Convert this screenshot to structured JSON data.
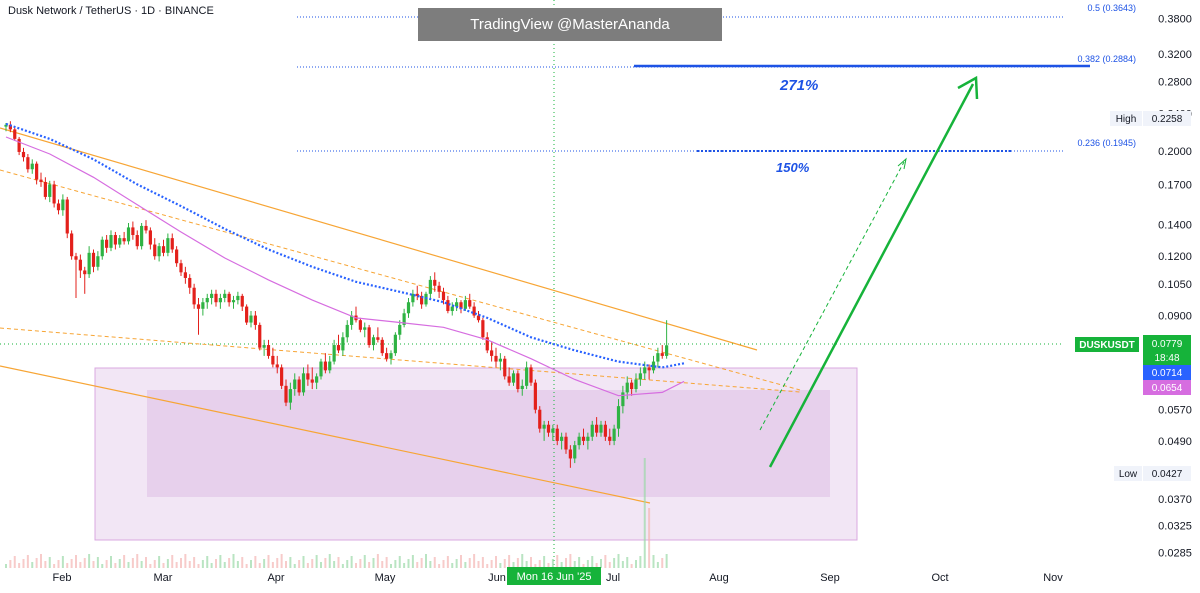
{
  "header": {
    "title": "Dusk Network / TetherUS · 1D · BINANCE",
    "watermark": "TradingView @MasterAnanda"
  },
  "colors": {
    "up": "#26a69a",
    "up_candle": "#2fb344",
    "down": "#e3201b",
    "ema_blue": "#2962ff",
    "ma_pink": "#d66de0",
    "channel": "#f7a535",
    "zone": "#e9d5ee",
    "arrow": "#16b33a",
    "fib": "#1e53e5",
    "price_tag": "#16b33a",
    "crosshair": "#16b33a"
  },
  "chart_data": {
    "type": "candlestick",
    "symbol": "DUSKUSDT",
    "interval": "1D",
    "exchange": "BINANCE",
    "x_ticks": [
      "Feb",
      "Mar",
      "Apr",
      "May",
      "Jun",
      "Jul",
      "Aug",
      "Sep",
      "Oct",
      "Nov"
    ],
    "y_ticks": [
      "0.3800",
      "0.3200",
      "0.2800",
      "0.2400",
      "0.2000",
      "0.1700",
      "0.1400",
      "0.1200",
      "0.1050",
      "0.0900",
      "0.0570",
      "0.0490",
      "0.0370",
      "0.0325",
      "0.0285"
    ],
    "y_scale": "log",
    "ylim": [
      0.0275,
      0.4
    ],
    "price_labels": {
      "last_symbol": "DUSKUSDT",
      "last_price": "0.0779",
      "countdown": "18:48",
      "ema_value": "0.0714",
      "ma_value": "0.0654",
      "high_label": "High",
      "high_value": "0.2258",
      "low_label": "Low",
      "low_value": "0.0427"
    },
    "crosshair_date": "Mon 16 Jun '25",
    "fib_levels": [
      {
        "label": "0.5 (0.3643)",
        "price": 0.3643
      },
      {
        "label": "0.382 (0.2884)",
        "price": 0.2884
      },
      {
        "label": "0.236 (0.1945)",
        "price": 0.1945
      }
    ],
    "targets": [
      {
        "label": "271%",
        "price": 0.2884
      },
      {
        "label": "150%",
        "price": 0.1945
      }
    ],
    "candles": [
      [
        0.225,
        0.229,
        0.22,
        0.227
      ],
      [
        0.227,
        0.231,
        0.219,
        0.222
      ],
      [
        0.222,
        0.224,
        0.21,
        0.212
      ],
      [
        0.212,
        0.214,
        0.196,
        0.199
      ],
      [
        0.199,
        0.203,
        0.19,
        0.194
      ],
      [
        0.194,
        0.197,
        0.18,
        0.183
      ],
      [
        0.183,
        0.192,
        0.179,
        0.188
      ],
      [
        0.188,
        0.19,
        0.17,
        0.174
      ],
      [
        0.174,
        0.18,
        0.168,
        0.172
      ],
      [
        0.172,
        0.176,
        0.158,
        0.16
      ],
      [
        0.16,
        0.173,
        0.156,
        0.17
      ],
      [
        0.17,
        0.173,
        0.152,
        0.155
      ],
      [
        0.155,
        0.158,
        0.147,
        0.15
      ],
      [
        0.15,
        0.162,
        0.146,
        0.158
      ],
      [
        0.158,
        0.16,
        0.131,
        0.134
      ],
      [
        0.134,
        0.136,
        0.118,
        0.12
      ],
      [
        0.12,
        0.122,
        0.098,
        0.118
      ],
      [
        0.118,
        0.121,
        0.108,
        0.112
      ],
      [
        0.112,
        0.114,
        0.1,
        0.11
      ],
      [
        0.11,
        0.126,
        0.108,
        0.122
      ],
      [
        0.122,
        0.124,
        0.111,
        0.114
      ],
      [
        0.114,
        0.123,
        0.112,
        0.12
      ],
      [
        0.12,
        0.132,
        0.118,
        0.13
      ],
      [
        0.13,
        0.133,
        0.122,
        0.125
      ],
      [
        0.125,
        0.136,
        0.123,
        0.133
      ],
      [
        0.133,
        0.135,
        0.124,
        0.127
      ],
      [
        0.127,
        0.133,
        0.125,
        0.131
      ],
      [
        0.131,
        0.135,
        0.127,
        0.129
      ],
      [
        0.129,
        0.141,
        0.127,
        0.138
      ],
      [
        0.138,
        0.142,
        0.13,
        0.133
      ],
      [
        0.133,
        0.136,
        0.124,
        0.126
      ],
      [
        0.126,
        0.141,
        0.124,
        0.139
      ],
      [
        0.139,
        0.143,
        0.134,
        0.136
      ],
      [
        0.136,
        0.138,
        0.124,
        0.127
      ],
      [
        0.127,
        0.131,
        0.118,
        0.12
      ],
      [
        0.12,
        0.128,
        0.117,
        0.126
      ],
      [
        0.126,
        0.13,
        0.12,
        0.122
      ],
      [
        0.122,
        0.134,
        0.12,
        0.131
      ],
      [
        0.131,
        0.134,
        0.122,
        0.124
      ],
      [
        0.124,
        0.126,
        0.114,
        0.116
      ],
      [
        0.116,
        0.118,
        0.109,
        0.111
      ],
      [
        0.111,
        0.114,
        0.105,
        0.108
      ],
      [
        0.108,
        0.11,
        0.1,
        0.103
      ],
      [
        0.103,
        0.105,
        0.093,
        0.095
      ],
      [
        0.095,
        0.098,
        0.082,
        0.093
      ],
      [
        0.093,
        0.098,
        0.09,
        0.096
      ],
      [
        0.096,
        0.1,
        0.093,
        0.098
      ],
      [
        0.098,
        0.102,
        0.095,
        0.1
      ],
      [
        0.1,
        0.102,
        0.094,
        0.096
      ],
      [
        0.096,
        0.1,
        0.093,
        0.098
      ],
      [
        0.098,
        0.102,
        0.096,
        0.1
      ],
      [
        0.1,
        0.101,
        0.094,
        0.096
      ],
      [
        0.096,
        0.099,
        0.093,
        0.097
      ],
      [
        0.097,
        0.101,
        0.095,
        0.099
      ],
      [
        0.099,
        0.1,
        0.092,
        0.094
      ],
      [
        0.094,
        0.095,
        0.086,
        0.087
      ],
      [
        0.087,
        0.092,
        0.085,
        0.09
      ],
      [
        0.09,
        0.092,
        0.084,
        0.086
      ],
      [
        0.086,
        0.087,
        0.076,
        0.077
      ],
      [
        0.077,
        0.08,
        0.074,
        0.078
      ],
      [
        0.078,
        0.08,
        0.073,
        0.074
      ],
      [
        0.074,
        0.077,
        0.07,
        0.071
      ],
      [
        0.071,
        0.074,
        0.068,
        0.07
      ],
      [
        0.07,
        0.071,
        0.063,
        0.064
      ],
      [
        0.064,
        0.066,
        0.058,
        0.059
      ],
      [
        0.059,
        0.065,
        0.057,
        0.063
      ],
      [
        0.063,
        0.068,
        0.061,
        0.066
      ],
      [
        0.066,
        0.067,
        0.061,
        0.062
      ],
      [
        0.062,
        0.07,
        0.061,
        0.068
      ],
      [
        0.068,
        0.071,
        0.064,
        0.066
      ],
      [
        0.066,
        0.07,
        0.063,
        0.065
      ],
      [
        0.065,
        0.068,
        0.063,
        0.067
      ],
      [
        0.067,
        0.073,
        0.066,
        0.072
      ],
      [
        0.072,
        0.075,
        0.068,
        0.069
      ],
      [
        0.069,
        0.074,
        0.068,
        0.072
      ],
      [
        0.072,
        0.08,
        0.071,
        0.078
      ],
      [
        0.078,
        0.082,
        0.075,
        0.076
      ],
      [
        0.076,
        0.083,
        0.074,
        0.081
      ],
      [
        0.081,
        0.088,
        0.079,
        0.086
      ],
      [
        0.086,
        0.092,
        0.084,
        0.09
      ],
      [
        0.09,
        0.094,
        0.087,
        0.088
      ],
      [
        0.088,
        0.089,
        0.083,
        0.084
      ],
      [
        0.084,
        0.087,
        0.081,
        0.085
      ],
      [
        0.085,
        0.086,
        0.077,
        0.078
      ],
      [
        0.078,
        0.082,
        0.076,
        0.081
      ],
      [
        0.081,
        0.085,
        0.079,
        0.08
      ],
      [
        0.08,
        0.081,
        0.074,
        0.075
      ],
      [
        0.075,
        0.077,
        0.072,
        0.073
      ],
      [
        0.073,
        0.076,
        0.071,
        0.075
      ],
      [
        0.075,
        0.083,
        0.074,
        0.082
      ],
      [
        0.082,
        0.088,
        0.08,
        0.086
      ],
      [
        0.086,
        0.093,
        0.085,
        0.091
      ],
      [
        0.091,
        0.098,
        0.089,
        0.096
      ],
      [
        0.096,
        0.102,
        0.094,
        0.1
      ],
      [
        0.1,
        0.104,
        0.097,
        0.099
      ],
      [
        0.099,
        0.101,
        0.093,
        0.095
      ],
      [
        0.095,
        0.101,
        0.094,
        0.1
      ],
      [
        0.1,
        0.109,
        0.098,
        0.107
      ],
      [
        0.107,
        0.111,
        0.101,
        0.104
      ],
      [
        0.104,
        0.106,
        0.098,
        0.101
      ],
      [
        0.101,
        0.103,
        0.095,
        0.097
      ],
      [
        0.097,
        0.099,
        0.091,
        0.092
      ],
      [
        0.092,
        0.096,
        0.09,
        0.094
      ],
      [
        0.094,
        0.098,
        0.092,
        0.096
      ],
      [
        0.096,
        0.097,
        0.091,
        0.093
      ],
      [
        0.093,
        0.099,
        0.092,
        0.097
      ],
      [
        0.097,
        0.1,
        0.093,
        0.094
      ],
      [
        0.094,
        0.096,
        0.089,
        0.09
      ],
      [
        0.09,
        0.092,
        0.087,
        0.088
      ],
      [
        0.088,
        0.089,
        0.08,
        0.081
      ],
      [
        0.081,
        0.083,
        0.075,
        0.076
      ],
      [
        0.076,
        0.079,
        0.072,
        0.074
      ],
      [
        0.074,
        0.077,
        0.07,
        0.072
      ],
      [
        0.072,
        0.075,
        0.069,
        0.073
      ],
      [
        0.073,
        0.074,
        0.066,
        0.067
      ],
      [
        0.067,
        0.07,
        0.064,
        0.065
      ],
      [
        0.065,
        0.069,
        0.064,
        0.068
      ],
      [
        0.068,
        0.069,
        0.062,
        0.063
      ],
      [
        0.063,
        0.066,
        0.061,
        0.064
      ],
      [
        0.064,
        0.072,
        0.063,
        0.07
      ],
      [
        0.07,
        0.071,
        0.064,
        0.065
      ],
      [
        0.065,
        0.066,
        0.056,
        0.057
      ],
      [
        0.057,
        0.058,
        0.051,
        0.052
      ],
      [
        0.052,
        0.054,
        0.049,
        0.053
      ],
      [
        0.053,
        0.054,
        0.05,
        0.051
      ],
      [
        0.051,
        0.053,
        0.049,
        0.052
      ],
      [
        0.052,
        0.053,
        0.048,
        0.049
      ],
      [
        0.049,
        0.051,
        0.047,
        0.05
      ],
      [
        0.05,
        0.051,
        0.046,
        0.047
      ],
      [
        0.047,
        0.048,
        0.043,
        0.045
      ],
      [
        0.045,
        0.049,
        0.044,
        0.048
      ],
      [
        0.048,
        0.051,
        0.047,
        0.05
      ],
      [
        0.05,
        0.052,
        0.048,
        0.049
      ],
      [
        0.049,
        0.051,
        0.047,
        0.05
      ],
      [
        0.05,
        0.054,
        0.049,
        0.053
      ],
      [
        0.053,
        0.055,
        0.05,
        0.051
      ],
      [
        0.051,
        0.054,
        0.05,
        0.053
      ],
      [
        0.053,
        0.054,
        0.049,
        0.05
      ],
      [
        0.05,
        0.052,
        0.048,
        0.049
      ],
      [
        0.049,
        0.053,
        0.048,
        0.052
      ],
      [
        0.052,
        0.06,
        0.05,
        0.058
      ],
      [
        0.058,
        0.064,
        0.056,
        0.062
      ],
      [
        0.062,
        0.067,
        0.06,
        0.065
      ],
      [
        0.065,
        0.066,
        0.061,
        0.063
      ],
      [
        0.063,
        0.068,
        0.062,
        0.066
      ],
      [
        0.066,
        0.07,
        0.064,
        0.068
      ],
      [
        0.068,
        0.072,
        0.066,
        0.07
      ],
      [
        0.07,
        0.071,
        0.066,
        0.069
      ],
      [
        0.069,
        0.074,
        0.068,
        0.072
      ],
      [
        0.072,
        0.077,
        0.07,
        0.075
      ],
      [
        0.075,
        0.078,
        0.073,
        0.074
      ],
      [
        0.074,
        0.088,
        0.073,
        0.0779
      ]
    ],
    "ema_dates_note": "",
    "ema_blue": [
      [
        0,
        0.228
      ],
      [
        10,
        0.212
      ],
      [
        20,
        0.192
      ],
      [
        30,
        0.17
      ],
      [
        40,
        0.153
      ],
      [
        50,
        0.137
      ],
      [
        60,
        0.124
      ],
      [
        70,
        0.114
      ],
      [
        80,
        0.106
      ],
      [
        90,
        0.101
      ],
      [
        100,
        0.096
      ],
      [
        110,
        0.089
      ],
      [
        120,
        0.081
      ],
      [
        130,
        0.076
      ],
      [
        140,
        0.072
      ],
      [
        150,
        0.07
      ],
      [
        155,
        0.0714
      ]
    ],
    "ma_pink": [
      [
        0,
        0.214
      ],
      [
        10,
        0.197
      ],
      [
        20,
        0.176
      ],
      [
        30,
        0.154
      ],
      [
        40,
        0.135
      ],
      [
        50,
        0.119
      ],
      [
        60,
        0.107
      ],
      [
        70,
        0.097
      ],
      [
        80,
        0.089
      ],
      [
        90,
        0.087
      ],
      [
        100,
        0.085
      ],
      [
        110,
        0.08
      ],
      [
        120,
        0.073
      ],
      [
        130,
        0.066
      ],
      [
        140,
        0.061
      ],
      [
        150,
        0.062
      ],
      [
        155,
        0.0654
      ]
    ]
  }
}
